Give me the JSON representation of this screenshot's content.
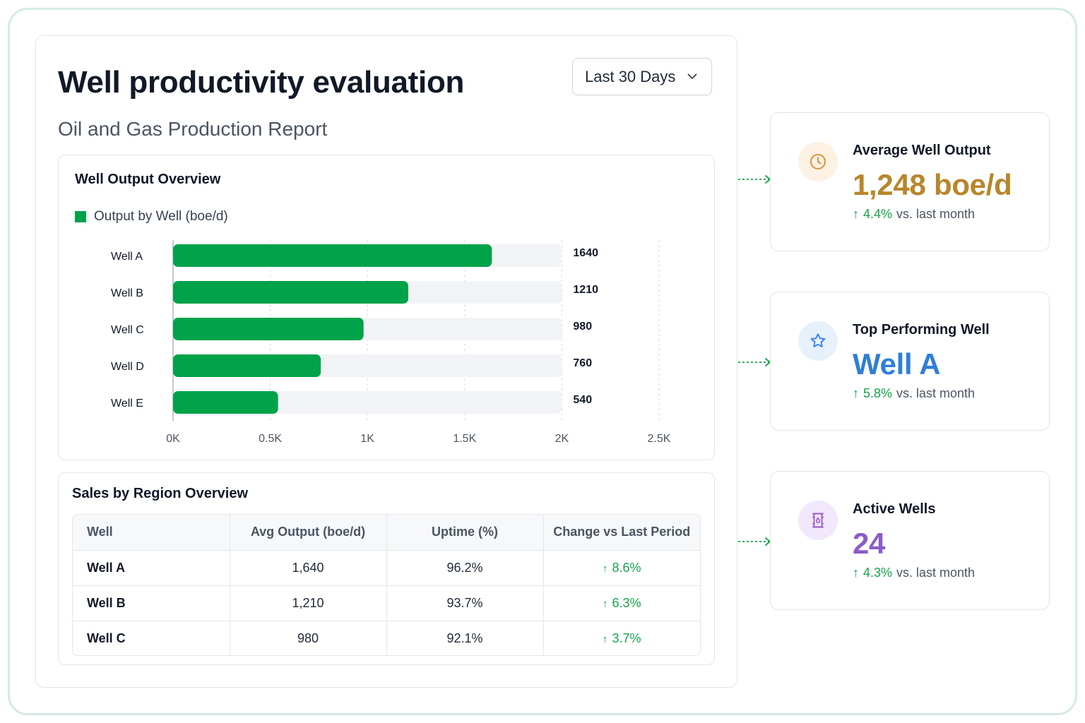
{
  "header": {
    "title": "Well productivity evaluation",
    "subtitle": "Oil and Gas Production Report",
    "range_select": {
      "value": "Last 30 Days"
    }
  },
  "overview_chart": {
    "title": "Well Output Overview"
  },
  "chart_data": {
    "type": "bar",
    "orientation": "horizontal",
    "title": "Well Output Overview",
    "categories": [
      "Well A",
      "Well B",
      "Well C",
      "Well D",
      "Well E"
    ],
    "series": [
      {
        "name": "Output by Well (boe/d)",
        "values": [
          1640,
          1210,
          980,
          760,
          540
        ],
        "color": "#00a24a"
      }
    ],
    "value_labels": [
      "1640",
      "1210",
      "980",
      "760",
      "540"
    ],
    "x_ticks": [
      0,
      500,
      1000,
      1500,
      2000,
      2500
    ],
    "x_tick_labels": [
      "0K",
      "0.5K",
      "1K",
      "1.5K",
      "2K",
      "2.5K"
    ],
    "xlim": [
      0,
      2500
    ],
    "track_max": 2000,
    "xlabel": "",
    "ylabel": "",
    "grid": true,
    "legend_position": "top-left",
    "track_color": "#f1f3f6"
  },
  "sales_table": {
    "title": "Sales by Region Overview",
    "columns": [
      "Well",
      "Avg Output (boe/d)",
      "Uptime (%)",
      "Change vs Last Period"
    ],
    "rows": [
      {
        "well": "Well A",
        "avg_output": "1,640",
        "uptime": "96.2%",
        "change": "8.6%"
      },
      {
        "well": "Well B",
        "avg_output": "1,210",
        "uptime": "93.7%",
        "change": "6.3%"
      },
      {
        "well": "Well C",
        "avg_output": "980",
        "uptime": "92.1%",
        "change": "3.7%"
      }
    ],
    "change_arrow": "↑",
    "change_color": "#16a34a"
  },
  "kpis": [
    {
      "label": "Average Well Output",
      "value": "1,248 boe/d",
      "delta_pct": "4.4%",
      "delta_suffix": "vs. last month",
      "arrow": "↑",
      "icon": "clock-icon",
      "value_color": "#b8862b",
      "icon_color": "#d9933a",
      "icon_bg": "#fdf1e3"
    },
    {
      "label": "Top Performing Well",
      "value": "Well A",
      "delta_pct": "5.8%",
      "delta_suffix": "vs. last month",
      "arrow": "↑",
      "icon": "star-icon",
      "value_color": "#2f7fd6",
      "icon_color": "#3b82f6",
      "icon_bg": "#e7f1fc"
    },
    {
      "label": "Active Wells",
      "value": "24",
      "delta_pct": "4.3%",
      "delta_suffix": "vs. last month",
      "arrow": "↑",
      "icon": "oil-barrel-icon",
      "value_color": "#8b5cc7",
      "icon_color": "#9b59d0",
      "icon_bg": "#f1e8fb"
    }
  ],
  "colors": {
    "accent_green": "#00a24a",
    "positive": "#16a34a",
    "frame_border": "#d5ebe0"
  }
}
